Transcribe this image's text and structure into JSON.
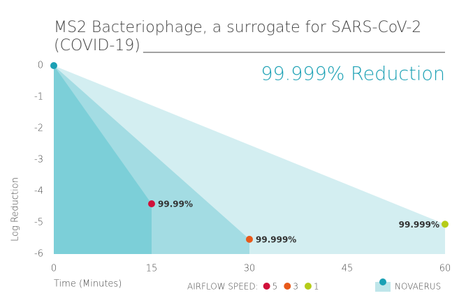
{
  "chart_data": {
    "type": "area",
    "title": [
      "MS2 Bacteriophage, a surrogate for SARS-CoV-2",
      "(COVID-19)"
    ],
    "annotation": "99.999% Reduction",
    "x_label": "Time (Minutes)",
    "y_label": "Log Reduction",
    "legend_title": "AIRFLOW SPEED:",
    "xlim": [
      0,
      60
    ],
    "xticks": [
      0,
      15,
      30,
      45,
      60
    ],
    "ylim": [
      -6,
      0
    ],
    "yticks": [
      0,
      -1,
      -2,
      -3,
      -4,
      -5,
      -6
    ],
    "series": [
      {
        "name": "1",
        "color": "#b5cc18",
        "area_color": "#d3eef1",
        "x": [
          0,
          60
        ],
        "values": [
          0,
          -5.05
        ],
        "point_label": "99.999%"
      },
      {
        "name": "3",
        "color": "#e8591a",
        "area_color": "#a3dce3",
        "x": [
          0,
          30
        ],
        "values": [
          0,
          -5.53
        ],
        "point_label": "99.999%"
      },
      {
        "name": "5",
        "color": "#d0103a",
        "area_color": "#7ccfd8",
        "x": [
          0,
          15
        ],
        "values": [
          0,
          -4.4
        ],
        "point_label": "99.99%"
      }
    ],
    "origin": {
      "name": "NOVAERUS",
      "color": "#1aa0b4",
      "x": 0,
      "value": 0
    }
  }
}
